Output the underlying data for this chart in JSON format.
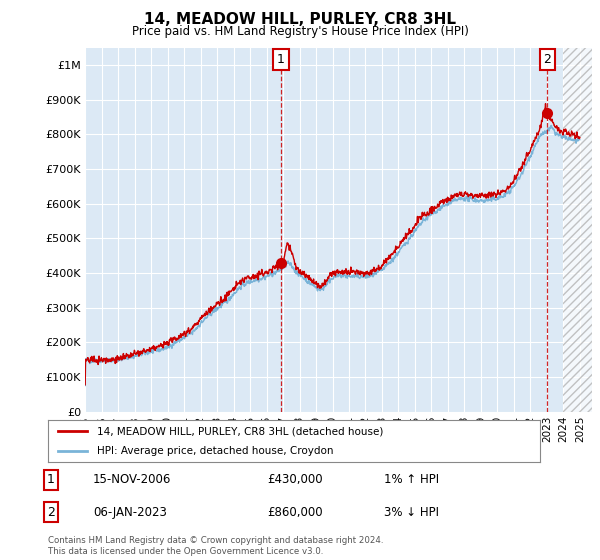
{
  "title": "14, MEADOW HILL, PURLEY, CR8 3HL",
  "subtitle": "Price paid vs. HM Land Registry's House Price Index (HPI)",
  "hpi_color": "#7ab4d8",
  "price_color": "#cc0000",
  "background_color": "#dce9f5",
  "plot_bg": "#dce9f5",
  "ylim": [
    0,
    1050000
  ],
  "yticks": [
    0,
    100000,
    200000,
    300000,
    400000,
    500000,
    600000,
    700000,
    800000,
    900000,
    1000000
  ],
  "ytick_labels": [
    "£0",
    "£100K",
    "£200K",
    "£300K",
    "£400K",
    "£500K",
    "£600K",
    "£700K",
    "£800K",
    "£900K",
    "£1M"
  ],
  "xlim_start": 1995.0,
  "xlim_end": 2025.75,
  "xtick_years": [
    1995,
    1996,
    1997,
    1998,
    1999,
    2000,
    2001,
    2002,
    2003,
    2004,
    2005,
    2006,
    2007,
    2008,
    2009,
    2010,
    2011,
    2012,
    2013,
    2014,
    2015,
    2016,
    2017,
    2018,
    2019,
    2020,
    2021,
    2022,
    2023,
    2024,
    2025
  ],
  "transaction1_x": 2006.88,
  "transaction1_y": 430000,
  "transaction2_x": 2023.03,
  "transaction2_y": 860000,
  "hatch_start": 2024.0,
  "legend_line1": "14, MEADOW HILL, PURLEY, CR8 3HL (detached house)",
  "legend_line2": "HPI: Average price, detached house, Croydon",
  "table_row1": [
    "1",
    "15-NOV-2006",
    "£430,000",
    "1% ↑ HPI"
  ],
  "table_row2": [
    "2",
    "06-JAN-2023",
    "£860,000",
    "3% ↓ HPI"
  ],
  "footnote": "Contains HM Land Registry data © Crown copyright and database right 2024.\nThis data is licensed under the Open Government Licence v3.0."
}
